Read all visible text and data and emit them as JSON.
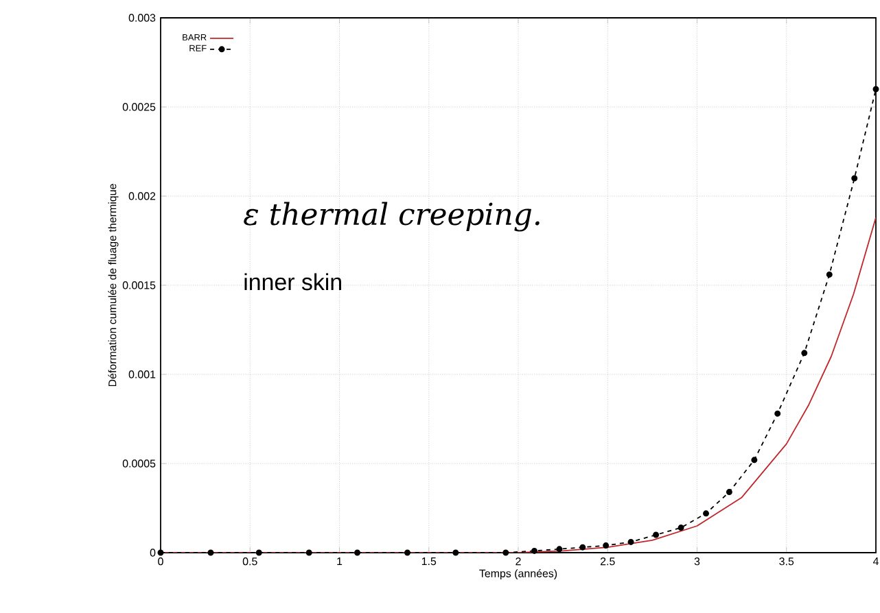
{
  "chart_data": {
    "type": "line",
    "xlabel": "Temps (années)",
    "ylabel": "Déformation cumulée de fluage thermique",
    "annotations": [
      "ε thermal creeping.",
      "inner skin"
    ],
    "xlim": [
      0,
      4
    ],
    "ylim": [
      0,
      0.003
    ],
    "xticks": [
      0,
      0.5,
      1,
      1.5,
      2,
      2.5,
      3,
      3.5,
      4
    ],
    "yticks": [
      0,
      0.0005,
      0.001,
      0.0015,
      0.002,
      0.0025,
      0.003
    ],
    "grid": true,
    "legend": "top left",
    "series": [
      {
        "name": "BARR",
        "color": "#c0272d",
        "line_style": "solid",
        "marker": "none",
        "x": [
          0,
          1.8,
          2,
          2.25,
          2.5,
          2.75,
          3,
          3.25,
          3.5,
          3.625,
          3.75,
          3.875,
          4
        ],
        "values": [
          0,
          0,
          0,
          1e-05,
          3e-05,
          7e-05,
          0.00015,
          0.00031,
          0.00061,
          0.00083,
          0.0011,
          0.00145,
          0.00188
        ]
      },
      {
        "name": "REF",
        "color": "#000000",
        "line_style": "dashed",
        "marker": "circle",
        "x": [
          0,
          0.28,
          0.55,
          0.83,
          1.1,
          1.38,
          1.65,
          1.93,
          2.09,
          2.23,
          2.36,
          2.49,
          2.63,
          2.77,
          2.91,
          3.05,
          3.18,
          3.32,
          3.45,
          3.6,
          3.74,
          3.88,
          4
        ],
        "values": [
          0,
          0,
          0,
          0,
          0,
          0,
          0,
          0,
          1e-05,
          2e-05,
          3e-05,
          4e-05,
          6e-05,
          0.0001,
          0.00014,
          0.00022,
          0.00034,
          0.00052,
          0.00078,
          0.00112,
          0.00156,
          0.0021,
          0.0026
        ]
      }
    ]
  }
}
